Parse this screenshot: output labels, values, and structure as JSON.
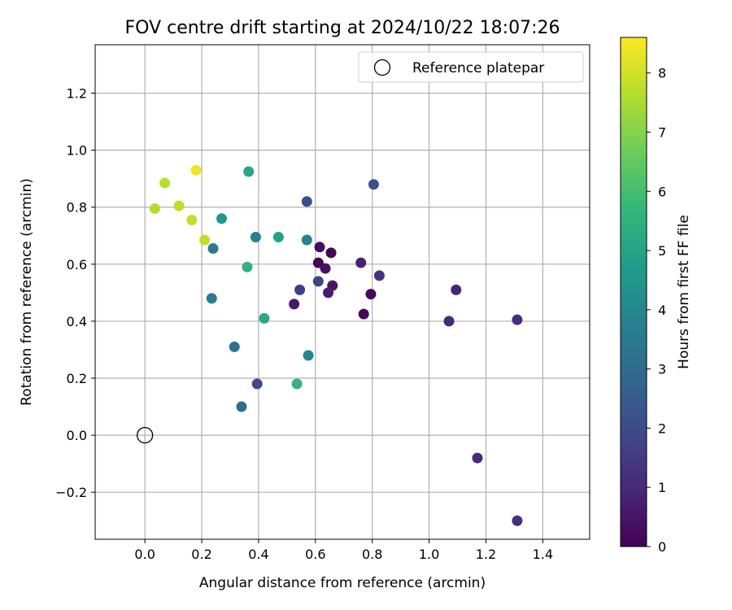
{
  "chart_data": {
    "type": "scatter",
    "title": "FOV centre drift starting at 2024/10/22 18:07:26",
    "xlabel": "Angular distance from reference (arcmin)",
    "ylabel": "Rotation from reference (arcmin)",
    "xlim": [
      -0.175,
      1.565
    ],
    "ylim": [
      -0.365,
      1.37
    ],
    "xticks": [
      0.0,
      0.2,
      0.4,
      0.6,
      0.8,
      1.0,
      1.2,
      1.4
    ],
    "xtick_labels": [
      "0.0",
      "0.2",
      "0.4",
      "0.6",
      "0.8",
      "1.0",
      "1.2",
      "1.4"
    ],
    "yticks": [
      -0.2,
      0.0,
      0.2,
      0.4,
      0.6,
      0.8,
      1.0,
      1.2
    ],
    "ytick_labels": [
      "−0.2",
      "0.0",
      "0.2",
      "0.4",
      "0.6",
      "0.8",
      "1.0",
      "1.2"
    ],
    "grid": true,
    "legend": {
      "placement": "top-right",
      "label": "Reference platepar"
    },
    "reference_point": {
      "x": 0.0,
      "y": 0.0
    },
    "colorbar": {
      "label": "Hours from first FF file",
      "min": 0,
      "max": 8.6,
      "ticks": [
        0,
        1,
        2,
        3,
        4,
        5,
        6,
        7,
        8
      ],
      "colormap": "viridis"
    },
    "points": [
      {
        "x": 0.61,
        "y": 0.605,
        "c": 0.05
      },
      {
        "x": 0.655,
        "y": 0.64,
        "c": 0.1
      },
      {
        "x": 0.77,
        "y": 0.425,
        "c": 0.2
      },
      {
        "x": 0.795,
        "y": 0.495,
        "c": 0.15
      },
      {
        "x": 0.615,
        "y": 0.66,
        "c": 0.3
      },
      {
        "x": 0.635,
        "y": 0.585,
        "c": 0.4
      },
      {
        "x": 0.66,
        "y": 0.525,
        "c": 0.5
      },
      {
        "x": 0.525,
        "y": 0.46,
        "c": 0.6
      },
      {
        "x": 0.645,
        "y": 0.5,
        "c": 0.7
      },
      {
        "x": 0.76,
        "y": 0.605,
        "c": 0.8
      },
      {
        "x": 1.095,
        "y": 0.51,
        "c": 0.9
      },
      {
        "x": 1.07,
        "y": 0.4,
        "c": 1.0
      },
      {
        "x": 1.31,
        "y": 0.405,
        "c": 1.1
      },
      {
        "x": 1.17,
        "y": -0.08,
        "c": 1.0
      },
      {
        "x": 1.31,
        "y": -0.3,
        "c": 1.2
      },
      {
        "x": 0.825,
        "y": 0.56,
        "c": 1.3
      },
      {
        "x": 0.545,
        "y": 0.51,
        "c": 1.6
      },
      {
        "x": 0.61,
        "y": 0.54,
        "c": 1.8
      },
      {
        "x": 0.395,
        "y": 0.18,
        "c": 1.9
      },
      {
        "x": 0.57,
        "y": 0.82,
        "c": 2.1
      },
      {
        "x": 0.805,
        "y": 0.88,
        "c": 2.2
      },
      {
        "x": 0.34,
        "y": 0.1,
        "c": 3.1
      },
      {
        "x": 0.315,
        "y": 0.31,
        "c": 3.3
      },
      {
        "x": 0.24,
        "y": 0.655,
        "c": 3.5
      },
      {
        "x": 0.235,
        "y": 0.48,
        "c": 3.6
      },
      {
        "x": 0.39,
        "y": 0.695,
        "c": 3.8
      },
      {
        "x": 0.57,
        "y": 0.685,
        "c": 3.9
      },
      {
        "x": 0.575,
        "y": 0.28,
        "c": 4.0
      },
      {
        "x": 0.27,
        "y": 0.76,
        "c": 4.6
      },
      {
        "x": 0.47,
        "y": 0.695,
        "c": 5.0
      },
      {
        "x": 0.365,
        "y": 0.925,
        "c": 5.1
      },
      {
        "x": 0.42,
        "y": 0.41,
        "c": 5.3
      },
      {
        "x": 0.36,
        "y": 0.59,
        "c": 5.5
      },
      {
        "x": 0.535,
        "y": 0.18,
        "c": 5.6
      },
      {
        "x": 0.035,
        "y": 0.795,
        "c": 7.6
      },
      {
        "x": 0.07,
        "y": 0.885,
        "c": 7.7
      },
      {
        "x": 0.12,
        "y": 0.805,
        "c": 7.7
      },
      {
        "x": 0.165,
        "y": 0.755,
        "c": 7.8
      },
      {
        "x": 0.21,
        "y": 0.685,
        "c": 7.8
      },
      {
        "x": 0.18,
        "y": 0.93,
        "c": 8.4
      }
    ]
  }
}
